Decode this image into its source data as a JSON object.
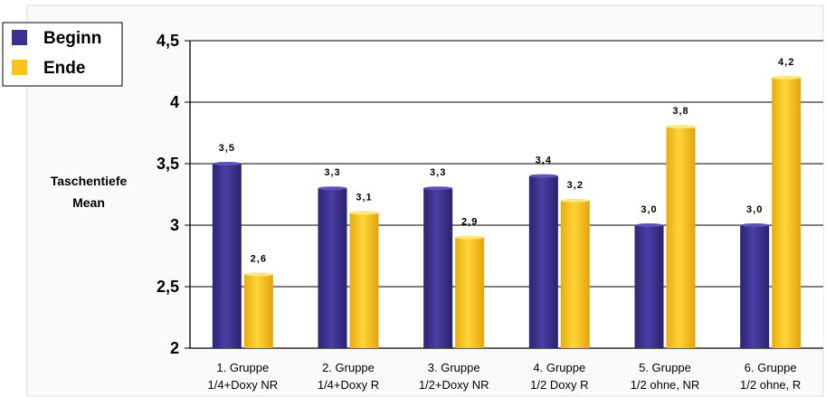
{
  "chart_data": {
    "type": "bar",
    "ylabel": [
      "Taschentiefe",
      "Mean"
    ],
    "ylim": [
      2,
      4.5
    ],
    "yticks": [
      "2",
      "2,5",
      "3",
      "3,5",
      "4",
      "4,5"
    ],
    "ytick_values": [
      2,
      2.5,
      3,
      3.5,
      4,
      4.5
    ],
    "categories": [
      [
        "1. Gruppe",
        "1/4+Doxy NR"
      ],
      [
        "2. Gruppe",
        "1/4+Doxy R"
      ],
      [
        "3. Gruppe",
        "1/2+Doxy NR"
      ],
      [
        "4. Gruppe",
        "1/2 Doxy R"
      ],
      [
        "5. Gruppe",
        "1/2 ohne, NR"
      ],
      [
        "6. Gruppe",
        "1/2 ohne, R"
      ]
    ],
    "series": [
      {
        "name": "Beginn",
        "color": "#3b3190",
        "values": [
          3.5,
          3.3,
          3.3,
          3.4,
          3.0,
          3.0
        ],
        "labels": [
          "3,5",
          "3,3",
          "3,3",
          "3,4",
          "3,0",
          "3,0"
        ]
      },
      {
        "name": "Ende",
        "color": "#f7c41f",
        "values": [
          2.6,
          3.1,
          2.9,
          3.2,
          3.8,
          4.2
        ],
        "labels": [
          "2,6",
          "3,1",
          "2,9",
          "3,2",
          "3,8",
          "4,2"
        ]
      }
    ],
    "grid": true,
    "legend": "top-left"
  }
}
